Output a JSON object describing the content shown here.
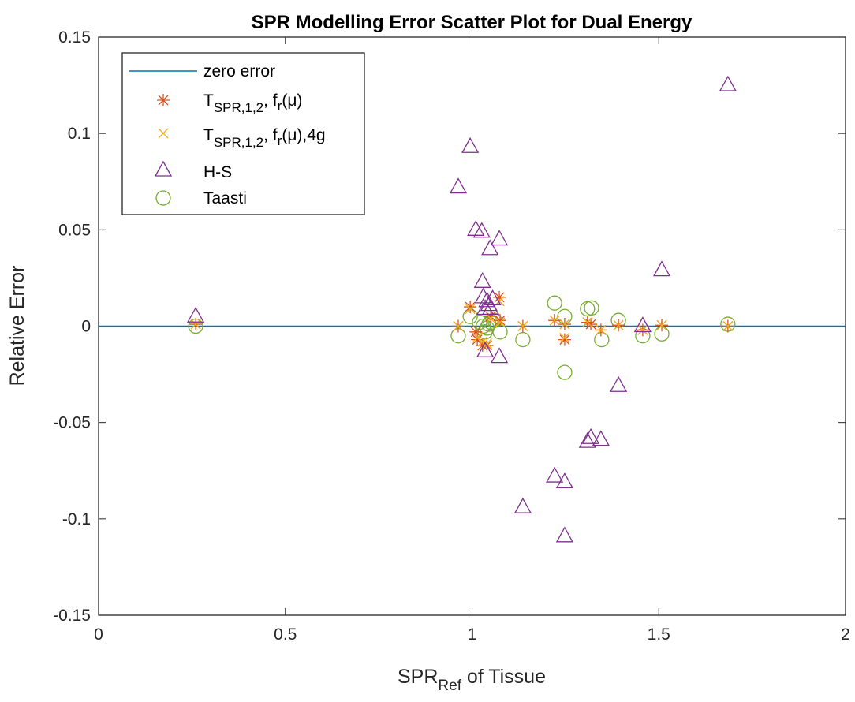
{
  "chart_data": {
    "type": "scatter",
    "title": "SPR Modelling Error Scatter Plot for Dual Energy",
    "xlabel": {
      "main": "SPR",
      "sub": "Ref",
      "rest": " of Tissue"
    },
    "ylabel": "Relative Error",
    "xlim": [
      0,
      2
    ],
    "ylim": [
      -0.15,
      0.15
    ],
    "xticks": [
      "0",
      "0.5",
      "1",
      "1.5",
      "2"
    ],
    "yticks": [
      "-0.15",
      "-0.1",
      "-0.05",
      "0",
      "0.05",
      "0.1",
      "0.15"
    ],
    "grid": false,
    "legend_placement": "top-left",
    "zero_line": {
      "name": "zero error",
      "y": 0,
      "color": "#0072BD"
    },
    "legend": [
      {
        "label": "zero error"
      },
      {
        "label": {
          "a": "T",
          "b": "SPR,1,2",
          "c": ", f",
          "d": "r",
          "e": "(μ)",
          "f": ""
        }
      },
      {
        "label": {
          "a": "T",
          "b": "SPR,1,2",
          "c": ", f",
          "d": "r",
          "e": "(μ)",
          "f": ",4g"
        }
      },
      {
        "label": "H-S"
      },
      {
        "label": "Taasti"
      }
    ],
    "series": [
      {
        "name": "T_SPR,1,2, f_r(μ)",
        "marker": "asterisk",
        "color": "#D95319",
        "points": [
          [
            0.26,
            0.001
          ],
          [
            0.963,
            0
          ],
          [
            0.995,
            0.01
          ],
          [
            1.073,
            0.015
          ],
          [
            1.014,
            -0.007
          ],
          [
            1.028,
            -0.01
          ],
          [
            1.04,
            -0.01
          ],
          [
            1.01,
            -0.003
          ],
          [
            1.05,
            0.005
          ],
          [
            1.075,
            0.003
          ],
          [
            1.136,
            0
          ],
          [
            1.221,
            0.003
          ],
          [
            1.248,
            0.001
          ],
          [
            1.248,
            -0.007
          ],
          [
            1.309,
            0.002
          ],
          [
            1.318,
            0.001
          ],
          [
            1.345,
            -0.002
          ],
          [
            1.392,
            0.0005
          ],
          [
            1.457,
            -0.002
          ],
          [
            1.508,
            0.0005
          ],
          [
            1.685,
            0
          ]
        ]
      },
      {
        "name": "T_SPR,1,2, f_r(μ),4g",
        "marker": "x",
        "color": "#EDB120",
        "points": [
          [
            0.26,
            0.001
          ],
          [
            0.963,
            0
          ],
          [
            0.995,
            0.009
          ],
          [
            1.073,
            0.013
          ],
          [
            1.014,
            -0.006
          ],
          [
            1.028,
            -0.008
          ],
          [
            1.04,
            -0.009
          ],
          [
            1.05,
            0.004
          ],
          [
            1.075,
            0.002
          ],
          [
            1.136,
            0
          ],
          [
            1.221,
            0.003
          ],
          [
            1.248,
            0.001
          ],
          [
            1.248,
            -0.006
          ],
          [
            1.309,
            0.002
          ],
          [
            1.345,
            -0.002
          ],
          [
            1.392,
            0.0005
          ],
          [
            1.457,
            -0.002
          ],
          [
            1.508,
            0.0005
          ],
          [
            1.685,
            0
          ]
        ]
      },
      {
        "name": "H-S",
        "marker": "triangle",
        "color": "#7E2F8E",
        "points": [
          [
            0.26,
            0.005
          ],
          [
            0.995,
            0.093
          ],
          [
            0.963,
            0.072
          ],
          [
            1.01,
            0.05
          ],
          [
            1.026,
            0.049
          ],
          [
            1.073,
            0.045
          ],
          [
            1.048,
            0.04
          ],
          [
            1.028,
            0.023
          ],
          [
            1.03,
            0.015
          ],
          [
            1.04,
            0.013
          ],
          [
            1.045,
            0.011
          ],
          [
            1.05,
            0.009
          ],
          [
            1.035,
            0.009
          ],
          [
            1.055,
            0.014
          ],
          [
            1.035,
            -0.013
          ],
          [
            1.073,
            -0.016
          ],
          [
            1.136,
            -0.094
          ],
          [
            1.221,
            -0.078
          ],
          [
            1.248,
            -0.081
          ],
          [
            1.248,
            -0.109
          ],
          [
            1.309,
            -0.06
          ],
          [
            1.318,
            -0.058
          ],
          [
            1.345,
            -0.059
          ],
          [
            1.392,
            -0.031
          ],
          [
            1.457,
            0
          ],
          [
            1.508,
            0.029
          ],
          [
            1.685,
            0.125
          ]
        ]
      },
      {
        "name": "Taasti",
        "marker": "circle",
        "color": "#77AC30",
        "points": [
          [
            0.26,
            0
          ],
          [
            0.963,
            -0.005
          ],
          [
            0.995,
            0.005
          ],
          [
            1.02,
            0.002
          ],
          [
            1.03,
            0
          ],
          [
            1.04,
            -0.001
          ],
          [
            1.045,
            0.001
          ],
          [
            1.035,
            -0.003
          ],
          [
            1.05,
            0.002
          ],
          [
            1.06,
            0.003
          ],
          [
            1.075,
            -0.003
          ],
          [
            1.136,
            -0.007
          ],
          [
            1.221,
            0.012
          ],
          [
            1.248,
            0.005
          ],
          [
            1.248,
            -0.024
          ],
          [
            1.309,
            0.009
          ],
          [
            1.32,
            0.0095
          ],
          [
            1.347,
            -0.007
          ],
          [
            1.392,
            0.003
          ],
          [
            1.457,
            -0.005
          ],
          [
            1.508,
            -0.004
          ],
          [
            1.685,
            0.001
          ]
        ]
      }
    ]
  }
}
